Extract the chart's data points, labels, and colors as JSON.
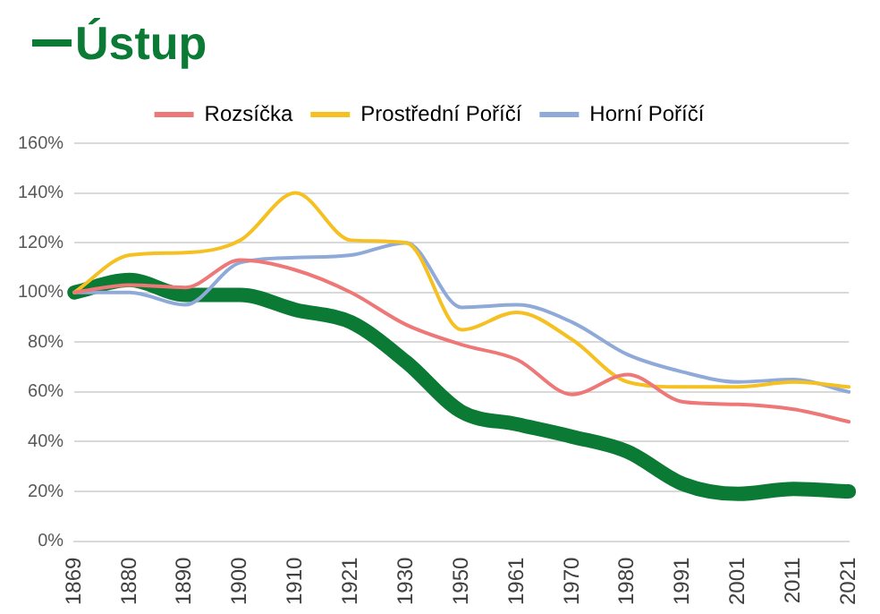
{
  "chart_data": {
    "type": "line",
    "categories": [
      "1869",
      "1880",
      "1890",
      "1900",
      "1910",
      "1921",
      "1930",
      "1950",
      "1961",
      "1970",
      "1980",
      "1991",
      "2001",
      "2011",
      "2021"
    ],
    "series": [
      {
        "name": "Ústup",
        "color": "#0b7a34",
        "values": [
          100,
          105,
          99,
          99,
          93,
          88,
          72,
          52,
          47,
          42,
          36,
          23,
          19,
          21,
          20
        ]
      },
      {
        "name": "Rozsíčka",
        "color": "#ee7777",
        "values": [
          100,
          103,
          102,
          113,
          109,
          100,
          87,
          79,
          73,
          59,
          67,
          56,
          55,
          53,
          48
        ]
      },
      {
        "name": "Prostřední Poříčí",
        "color": "#f5c021",
        "values": [
          100,
          115,
          116,
          121,
          140,
          121,
          120,
          85,
          92,
          81,
          64,
          62,
          62,
          64,
          62
        ]
      },
      {
        "name": "Horní Poříčí",
        "color": "#8faad8",
        "values": [
          100,
          100,
          95,
          112,
          114,
          115,
          120,
          94,
          95,
          88,
          75,
          68,
          64,
          65,
          60
        ]
      }
    ],
    "ylim": [
      0,
      160
    ],
    "yticks": [
      {
        "value": 0,
        "label": "0%"
      },
      {
        "value": 20,
        "label": "20%"
      },
      {
        "value": 40,
        "label": "40%"
      },
      {
        "value": 60,
        "label": "60%"
      },
      {
        "value": 80,
        "label": "80%"
      },
      {
        "value": 100,
        "label": "100%"
      },
      {
        "value": 120,
        "label": "120%"
      },
      {
        "value": 140,
        "label": "140%"
      },
      {
        "value": 160,
        "label": "160%"
      }
    ],
    "grid": "y",
    "legend": "top",
    "marker": "none",
    "line_style": "solid"
  }
}
